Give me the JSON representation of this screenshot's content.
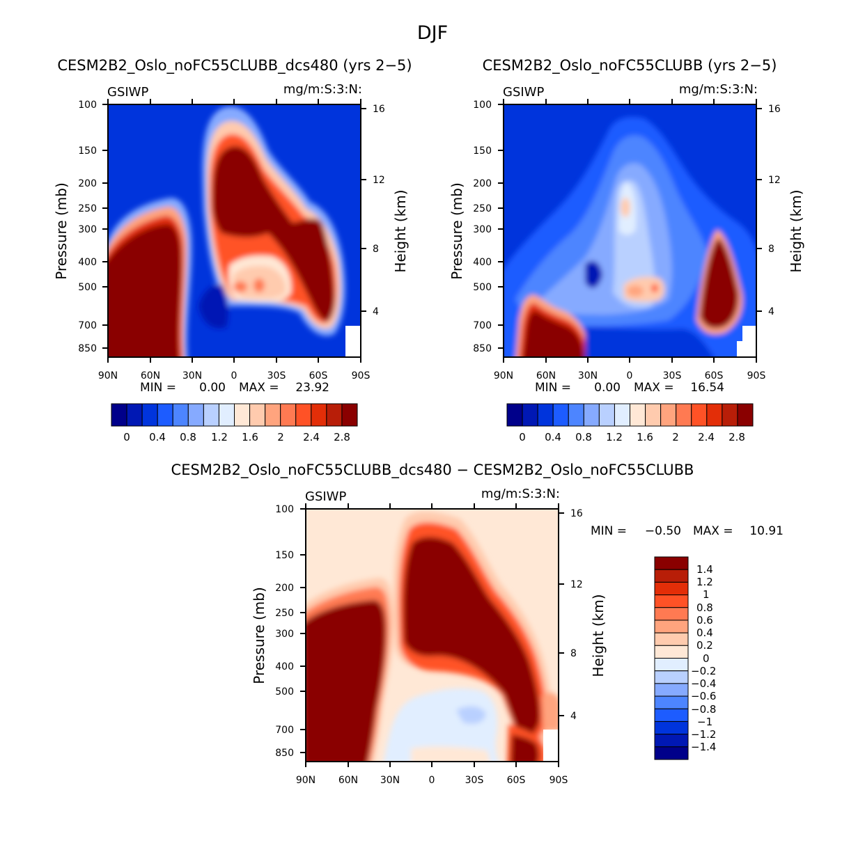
{
  "chart_data": {
    "type": "contour",
    "title": "DJF",
    "panels": [
      {
        "id": "p1",
        "title": "CESM2B2_Oslo_noFC55CLUBB_dcs480 (yrs 2−5)",
        "left_label": "GSIWP",
        "right_label": "mg/m:S:3:N:",
        "xlabel": "",
        "ylabel": "Pressure (mb)",
        "y2label": "Height (km)",
        "x_ticks": [
          "90N",
          "60N",
          "30N",
          "0",
          "30S",
          "60S",
          "90S"
        ],
        "y_ticks": [
          "100",
          "150",
          "200",
          "250",
          "300",
          "400",
          "500",
          "700",
          "850"
        ],
        "y2_ticks": [
          "16",
          "12",
          "8",
          "4"
        ],
        "min_label": "MIN =",
        "min_value": "0.00",
        "max_label": "MAX =",
        "max_value": "23.92",
        "colorbar_labels": [
          "0",
          "0.4",
          "0.8",
          "1.2",
          "1.6",
          "2",
          "2.4",
          "2.8"
        ]
      },
      {
        "id": "p2",
        "title": "CESM2B2_Oslo_noFC55CLUBB (yrs 2−5)",
        "left_label": "GSIWP",
        "right_label": "mg/m:S:3:N:",
        "xlabel": "",
        "ylabel": "Pressure (mb)",
        "y2label": "Height (km)",
        "x_ticks": [
          "90N",
          "60N",
          "30N",
          "0",
          "30S",
          "60S",
          "90S"
        ],
        "y_ticks": [
          "100",
          "150",
          "200",
          "250",
          "300",
          "400",
          "500",
          "700",
          "850"
        ],
        "y2_ticks": [
          "16",
          "12",
          "8",
          "4"
        ],
        "min_label": "MIN =",
        "min_value": "0.00",
        "max_label": "MAX =",
        "max_value": "16.54",
        "colorbar_labels": [
          "0",
          "0.4",
          "0.8",
          "1.2",
          "1.6",
          "2",
          "2.4",
          "2.8"
        ]
      },
      {
        "id": "p3",
        "title": "CESM2B2_Oslo_noFC55CLUBB_dcs480 − CESM2B2_Oslo_noFC55CLUBB",
        "left_label": "GSIWP",
        "right_label": "mg/m:S:3:N:",
        "xlabel": "",
        "ylabel": "Pressure (mb)",
        "y2label": "Height (km)",
        "x_ticks": [
          "90N",
          "60N",
          "30N",
          "0",
          "30S",
          "60S",
          "90S"
        ],
        "y_ticks": [
          "100",
          "150",
          "200",
          "250",
          "300",
          "400",
          "500",
          "700",
          "850"
        ],
        "y2_ticks": [
          "16",
          "12",
          "8",
          "4"
        ],
        "min_label": "MIN =",
        "min_value": "−0.50",
        "max_label": "MAX =",
        "max_value": "10.91",
        "colorbar_labels": [
          "1.4",
          "1.2",
          "1",
          "0.8",
          "0.6",
          "0.4",
          "0.2",
          "0",
          "−0.2",
          "−0.4",
          "−0.6",
          "−0.8",
          "−1",
          "−1.2",
          "−1.4"
        ]
      }
    ],
    "colorbar_abs": [
      "#00008a",
      "#0018b4",
      "#0034dc",
      "#1d5cff",
      "#4d85ff",
      "#86aaff",
      "#b9d0ff",
      "#e1eeff",
      "#ffe8d6",
      "#ffcbae",
      "#ffa47e",
      "#ff7a52",
      "#ff5226",
      "#e32e08",
      "#b81e08",
      "#8a0000"
    ],
    "colorbar_diff": [
      "#8a0000",
      "#b81e08",
      "#e32e08",
      "#ff5226",
      "#ff7a52",
      "#ffa47e",
      "#ffcbae",
      "#ffe8d6",
      "#e1eeff",
      "#b9d0ff",
      "#86aaff",
      "#4d85ff",
      "#1d5cff",
      "#0034dc",
      "#0018b4",
      "#00008a"
    ]
  }
}
